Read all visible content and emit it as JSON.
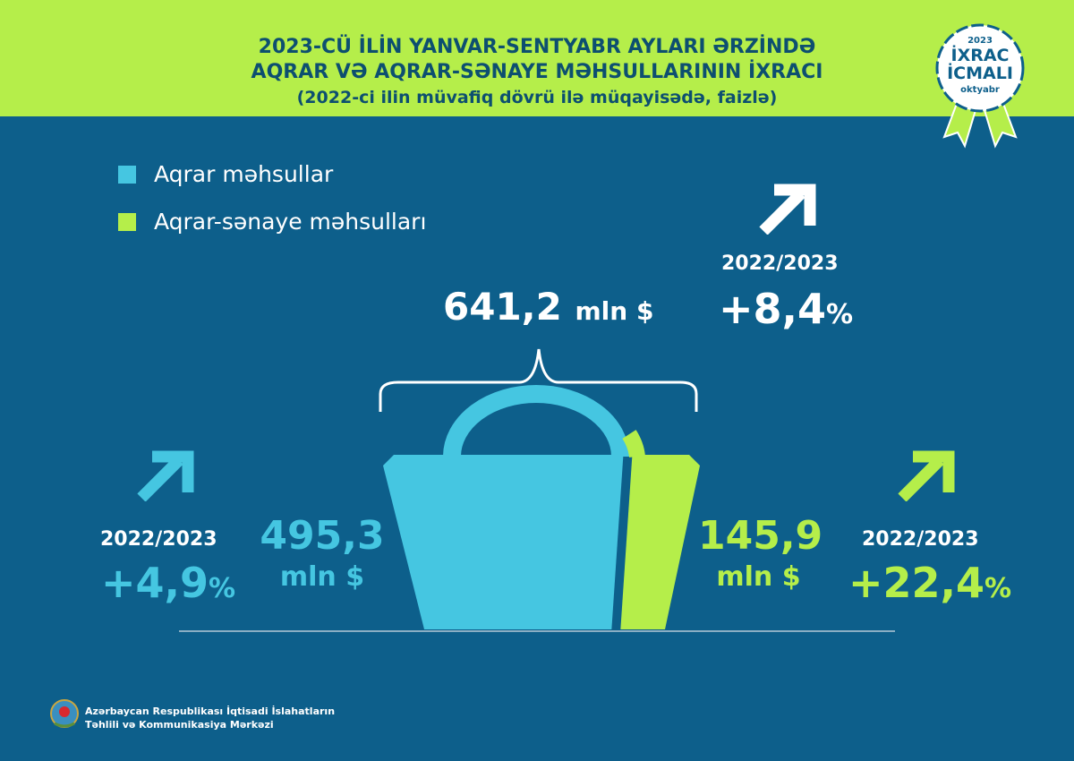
{
  "header": {
    "title_line1": "2023-CÜ İLİN YANVAR-SENTYABR AYLARI ƏRZİNDƏ",
    "title_line2": "AQRAR VƏ AQRAR-SƏNAYE MƏHSULLARININ İXRACI",
    "subtitle": "(2022-ci ilin müvafiq dövrü ilə müqayisədə, faizlə)"
  },
  "badge": {
    "year": "2023",
    "line1": "İXRAC",
    "line2": "İCMALI",
    "month": "oktyabr"
  },
  "legend": [
    {
      "label": "Aqrar məhsullar",
      "color": "#45c6e1"
    },
    {
      "label": "Aqrar-sənaye məhsulları",
      "color": "#b5ee4a"
    }
  ],
  "total": {
    "value": "641,2",
    "unit": "mln $",
    "period": "2022/2023",
    "change": "+8,4",
    "pct": "%"
  },
  "agrarian": {
    "value": "495,3",
    "unit": "mln $",
    "period": "2022/2023",
    "change": "+4,9",
    "pct": "%"
  },
  "agroindustrial": {
    "value": "145,9",
    "unit": "mln $",
    "period": "2022/2023",
    "change": "+22,4",
    "pct": "%"
  },
  "footer": {
    "line1": "Azərbaycan Respublikası İqtisadi İslahatların",
    "line2": "Təhlili və Kommunikasiya Mərkəzi"
  },
  "colors": {
    "header": "#b5ee4a",
    "background": "#0d5f8b",
    "agrarian": "#45c6e1",
    "agroindustrial": "#b5ee4a"
  },
  "chart_data": {
    "type": "bar",
    "stacked": true,
    "unit": "mln $",
    "total": 641.2,
    "series": [
      {
        "name": "Aqrar məhsullar",
        "values": [
          495.3
        ],
        "change_pct": 4.9
      },
      {
        "name": "Aqrar-sənaye məhsulları",
        "values": [
          145.9
        ],
        "change_pct": 22.4
      }
    ],
    "total_change_pct": 8.4
  }
}
